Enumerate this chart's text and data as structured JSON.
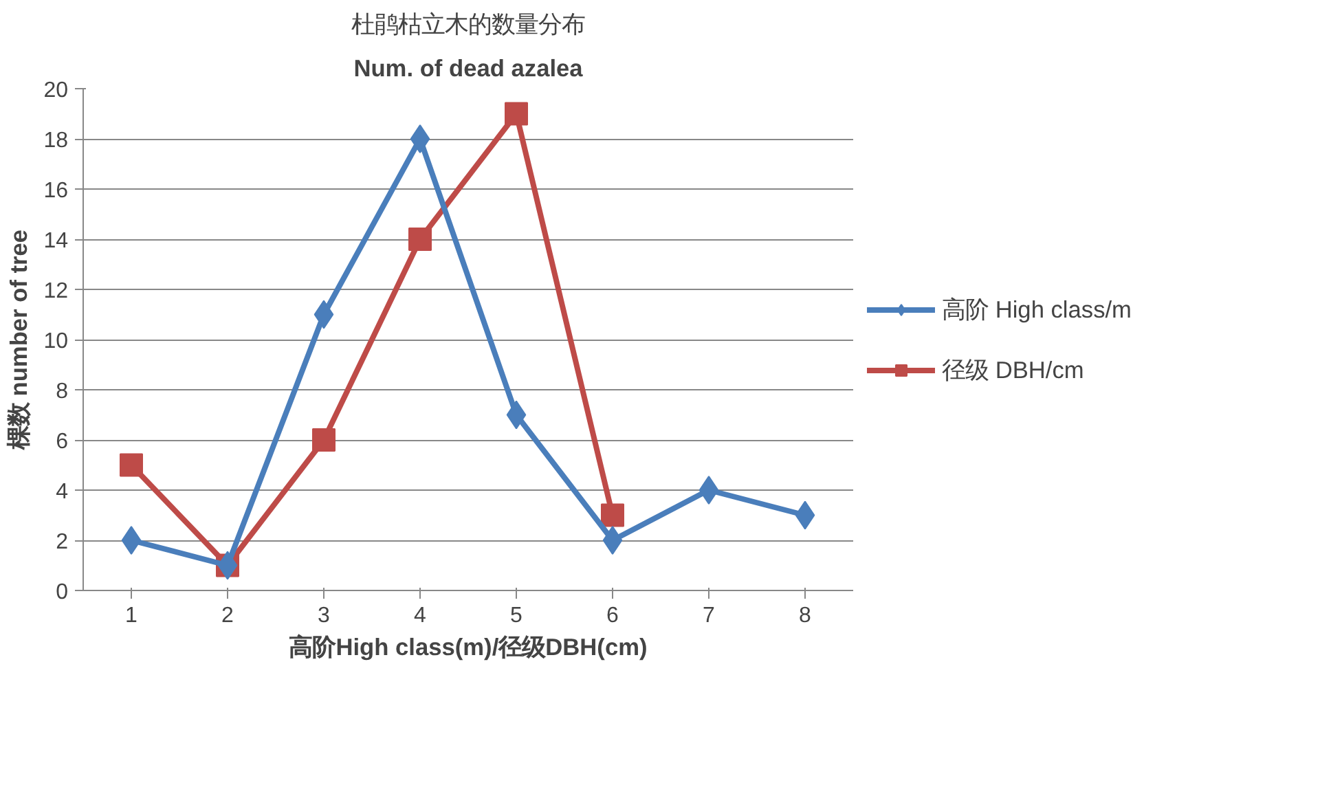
{
  "chart_data": {
    "type": "line",
    "title": "杜鹃枯立木的数量分布",
    "subtitle": "Num. of dead azalea",
    "xlabel": "高阶High class(m)/径级DBH(cm)",
    "ylabel": "棵数 number of tree",
    "categories": [
      "1",
      "2",
      "3",
      "4",
      "5",
      "6",
      "7",
      "8"
    ],
    "series": [
      {
        "name": "高阶 High class/m",
        "color": "#4a7ebb",
        "marker": "diamond",
        "values": [
          2,
          1,
          11,
          18,
          7,
          2,
          4,
          3
        ]
      },
      {
        "name": "径级 DBH/cm",
        "color": "#be4b48",
        "marker": "square",
        "values": [
          5,
          1,
          6,
          14,
          19,
          3,
          null,
          null
        ]
      }
    ],
    "ylim": [
      0,
      20
    ],
    "yticks": [
      0,
      2,
      4,
      6,
      8,
      10,
      12,
      14,
      16,
      18,
      20
    ],
    "grid": "y",
    "legend": "right",
    "line_style": "solid"
  }
}
